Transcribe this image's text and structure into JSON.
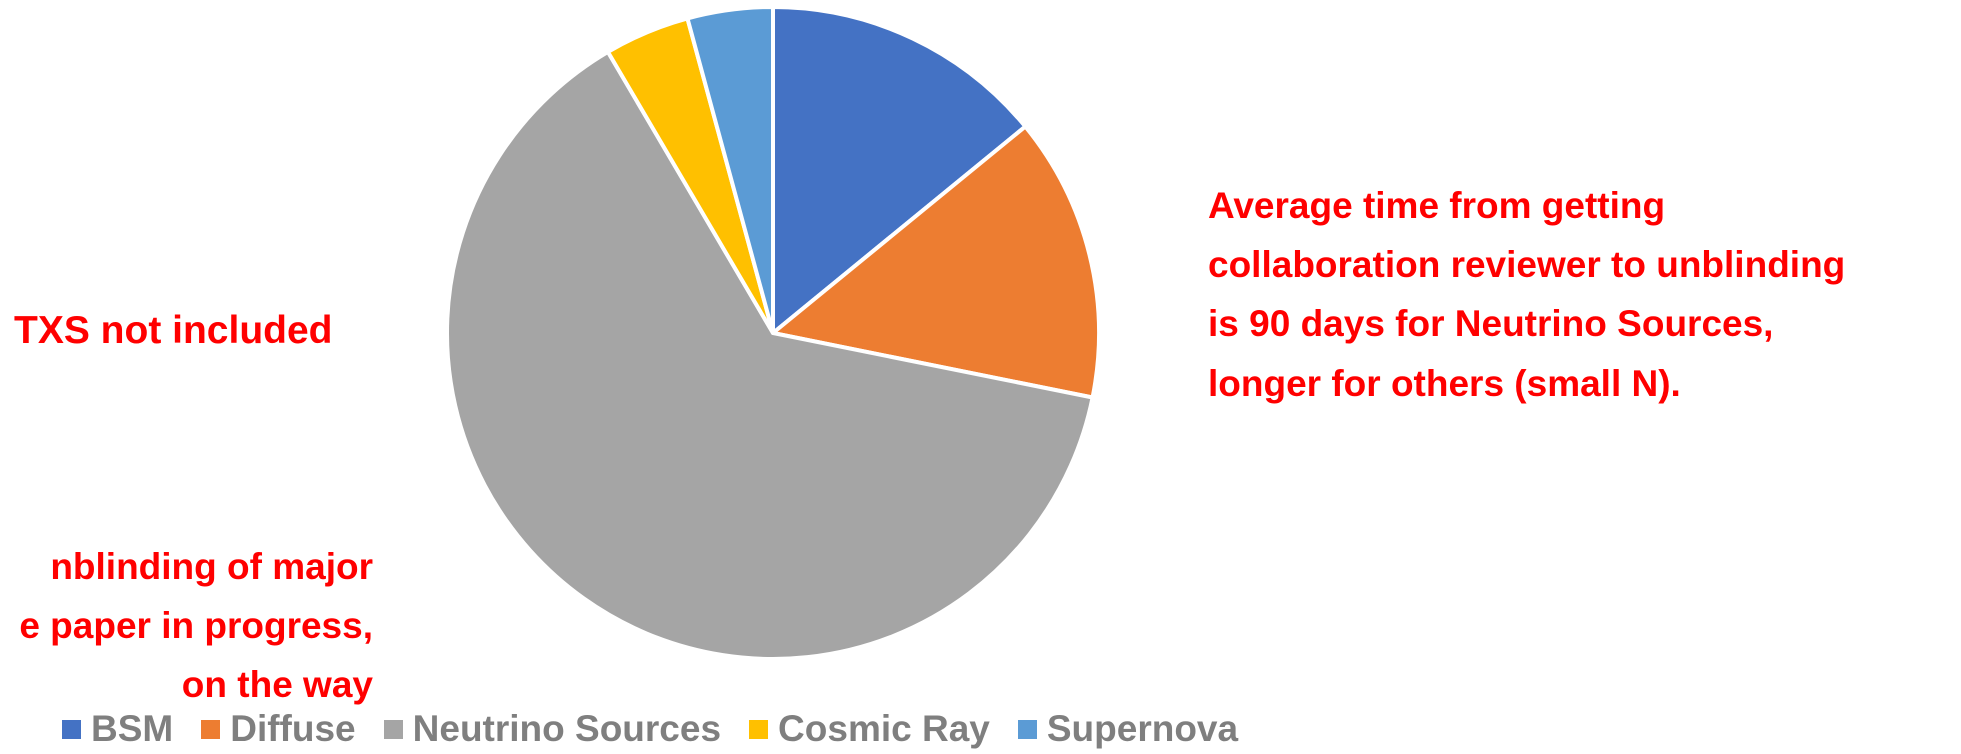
{
  "chart_data": {
    "type": "pie",
    "categories": [
      "BSM",
      "Diffuse",
      "Neutrino Sources",
      "Cosmic Ray",
      "Supernova"
    ],
    "values": [
      4,
      4,
      18,
      1.2,
      1.2
    ],
    "colors": [
      "#4472c4",
      "#ed7d31",
      "#a5a5a5",
      "#ffc000",
      "#5b9bd5"
    ],
    "start": "12 o'clock",
    "direction": "clockwise",
    "legend": "bottom"
  },
  "annotations": {
    "left_note": "TXS not included",
    "right_note": [
      "Average time from getting",
      "collaboration reviewer to unblinding",
      "is 90 days for Neutrino Sources,",
      "longer for others (small N)."
    ],
    "bottom_note": [
      "nblinding of major",
      "e paper in progress,",
      "on the way"
    ]
  }
}
